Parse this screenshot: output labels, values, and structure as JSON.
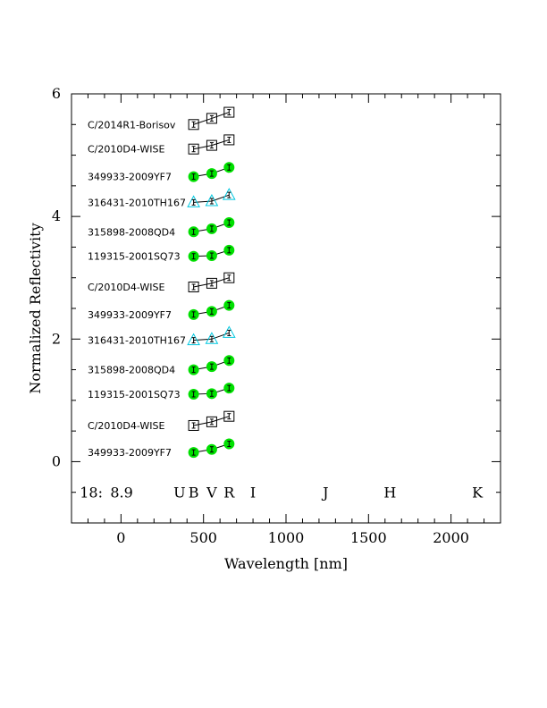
{
  "chart_data": {
    "type": "scatter",
    "xlabel": "Wavelength [nm]",
    "ylabel": "Normalized Reflectivity",
    "xlim": [
      -300,
      2300
    ],
    "ylim": [
      -1,
      6
    ],
    "x_ticks": [
      0,
      500,
      1000,
      1500,
      2000
    ],
    "y_ticks": [
      0,
      2,
      4,
      6
    ],
    "grid": false,
    "band_row": {
      "y": -0.5,
      "prefix_label": "18:",
      "prefix_x": -250,
      "magnitude_label": "8.9",
      "magnitude_x": -65,
      "bands": [
        {
          "name": "U",
          "x": 355
        },
        {
          "name": "B",
          "x": 440
        },
        {
          "name": "V",
          "x": 550
        },
        {
          "name": "R",
          "x": 655
        },
        {
          "name": "I",
          "x": 800
        },
        {
          "name": "J",
          "x": 1240
        },
        {
          "name": "H",
          "x": 1630
        },
        {
          "name": "K",
          "x": 2160
        }
      ]
    },
    "series": [
      {
        "name": "349933-2009YF7",
        "marker": "filled-circle",
        "color": "#00e000",
        "x": [
          440,
          550,
          655
        ],
        "y": [
          0.15,
          0.2,
          0.29
        ]
      },
      {
        "name": "C/2010D4-WISE",
        "marker": "open-square",
        "color": "#000000",
        "x": [
          440,
          550,
          655
        ],
        "y": [
          0.59,
          0.65,
          0.74
        ]
      },
      {
        "name": "119315-2001SQ73",
        "marker": "filled-circle",
        "color": "#00e000",
        "x": [
          440,
          550,
          655
        ],
        "y": [
          1.1,
          1.11,
          1.2
        ]
      },
      {
        "name": "315898-2008QD4",
        "marker": "filled-circle",
        "color": "#00e000",
        "x": [
          440,
          550,
          655
        ],
        "y": [
          1.5,
          1.55,
          1.65
        ]
      },
      {
        "name": "316431-2010TH167",
        "marker": "open-triangle",
        "color": "#00c8e0",
        "x": [
          440,
          550,
          655
        ],
        "y": [
          1.98,
          2.0,
          2.1
        ]
      },
      {
        "name": "349933-2009YF7",
        "marker": "filled-circle",
        "color": "#00e000",
        "x": [
          440,
          550,
          655
        ],
        "y": [
          2.4,
          2.45,
          2.55
        ]
      },
      {
        "name": "C/2010D4-WISE",
        "marker": "open-square",
        "color": "#000000",
        "x": [
          440,
          550,
          655
        ],
        "y": [
          2.85,
          2.91,
          3.0
        ]
      },
      {
        "name": "119315-2001SQ73",
        "marker": "filled-circle",
        "color": "#00e000",
        "x": [
          440,
          550,
          655
        ],
        "y": [
          3.35,
          3.36,
          3.45
        ]
      },
      {
        "name": "315898-2008QD4",
        "marker": "filled-circle",
        "color": "#00e000",
        "x": [
          440,
          550,
          655
        ],
        "y": [
          3.75,
          3.8,
          3.9
        ]
      },
      {
        "name": "316431-2010TH167",
        "marker": "open-triangle",
        "color": "#00c8e0",
        "x": [
          440,
          550,
          655
        ],
        "y": [
          4.23,
          4.25,
          4.35
        ]
      },
      {
        "name": "349933-2009YF7",
        "marker": "filled-circle",
        "color": "#00e000",
        "x": [
          440,
          550,
          655
        ],
        "y": [
          4.65,
          4.7,
          4.8
        ]
      },
      {
        "name": "C/2010D4-WISE",
        "marker": "open-square",
        "color": "#000000",
        "x": [
          440,
          550,
          655
        ],
        "y": [
          5.1,
          5.16,
          5.25
        ]
      },
      {
        "name": "C/2014R1-Borisov",
        "marker": "open-square",
        "color": "#000000",
        "x": [
          440,
          550,
          655
        ],
        "y": [
          5.5,
          5.6,
          5.7
        ]
      }
    ]
  }
}
